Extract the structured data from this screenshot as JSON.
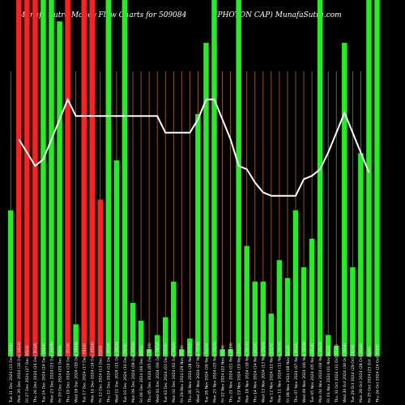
{
  "header": {
    "left": "Munafa Sutra  Money Flow  Charts for 509084",
    "right": "(PHOTON   CAP) MunafaSutra.com"
  },
  "colors": {
    "background": "#000000",
    "up": "#22ee22",
    "down": "#ff2020",
    "guide": "#b5651d",
    "line": "#ffffff"
  },
  "chart_data": {
    "type": "bar",
    "title": "Munafa Sutra  Money Flow  Charts for 509084",
    "subtitle": "(PHOTON   CAP) MunafaSutra.com",
    "ylim": [
      0,
      100
    ],
    "categories": [
      "Tue 31 Dec 2024 (31 Dec 2024)",
      "Mon 30 Dec 2024 (30 Dec 2024)",
      "Fri 27 Dec 2024 (27 Dec 2024)",
      "Thu 26 Dec 2024 (26 Dec 2024)",
      "Tue 24 Dec 2024 (24 Dec 2024)",
      "Mon 23 Dec 2024 (23 Dec 2024)",
      "Fri 20 Dec 2024 (20 Dec 2024)",
      "Thu 19 Dec 2024 (19 Dec 2024)",
      "Wed 18 Dec 2024 (18 Dec 2024)",
      "Tue 17 Dec 2024 (17 Dec 2024)",
      "Mon 16 Dec 2024 (16 Dec 2024)",
      "Fri 13 Dec 2024 (13 Dec 2024)",
      "Thu 12 Dec 2024 (12 Dec 2024)",
      "Wed 11 Dec 2024 (11 Dec 2024)",
      "Tue 10 Dec 2024 (10 Dec 2024)",
      "Mon 09 Dec 2024 (09 Dec 2024)",
      "Fri 06 Dec 2024 (06 Dec 2024)",
      "Thu 05 Dec 2024 (05 Dec 2024)",
      "Wed 04 Dec 2024 (04 Dec 2024)",
      "Tue 03 Dec 2024 (03 Dec 2024)",
      "Mon 02 Dec 2024 (02 Dec 2024)",
      "Fri 29 Nov 2024 (29 Nov 2024)",
      "Thu 28 Nov 2024 (28 Nov 2024)",
      "Wed 27 Nov 2024 (27 Nov 2024)",
      "Tue 26 Nov 2024 (26 Nov 2024)",
      "Mon 25 Nov 2024 (25 Nov 2024)",
      "Fri 22 Nov 2024 (22 Nov 2024)",
      "Thu 21 Nov 2024 (21 Nov 2024)",
      "Tue 19 Nov 2024 (19 Nov 2024)",
      "Mon 18 Nov 2024 (18 Nov 2024)",
      "Thu 14 Nov 2024 (14 Nov 2024)",
      "Wed 13 Nov 2024 (13 Nov 2024)",
      "Tue 12 Nov 2024 (12 Nov 2024)",
      "Mon 11 Nov 2024 (11 Nov 2024)",
      "Fri 08 Nov 2024 (08 Nov 2024)",
      "Thu 07 Nov 2024 (07 Nov 2024)",
      "Wed 06 Nov 2024 (06 Nov 2024)",
      "Tue 05 Nov 2024 (05 Nov 2024)",
      "Mon 04 Nov 2024 (04 Nov 2024)",
      "Fri 01 Nov 2024 (01 Nov 2024)",
      "Thu 31 Oct 2024 (31 Oct 2024)",
      "Wed 30 Oct 2024 (30 Oct 2024)",
      "Tue 29 Oct 2024 (29 Oct 2024)",
      "Mon 28 Oct 2024 (28 Oct 2024)",
      "Fri 25 Oct 2024 (25 Oct 2024)",
      "Thu 24 Oct 2024 (24 Oct 2024)"
    ],
    "series": [
      {
        "name": "money_flow_bar",
        "values": [
          41,
          100,
          100,
          100,
          100,
          100,
          94,
          100,
          9,
          100,
          100,
          44,
          100,
          55,
          100,
          15,
          10,
          2,
          6,
          11,
          21,
          2,
          5,
          68,
          88,
          100,
          2,
          2,
          100,
          31,
          21,
          21,
          12,
          27,
          22,
          41,
          25,
          33,
          100,
          6,
          3,
          88,
          25,
          57,
          100,
          100
        ],
        "colors": [
          "g",
          "r",
          "r",
          "r",
          "g",
          "g",
          "g",
          "r",
          "g",
          "r",
          "r",
          "r",
          "g",
          "g",
          "g",
          "g",
          "g",
          "g",
          "g",
          "g",
          "g",
          "g",
          "g",
          "g",
          "g",
          "g",
          "g",
          "g",
          "g",
          "g",
          "g",
          "g",
          "g",
          "g",
          "g",
          "g",
          "g",
          "g",
          "g",
          "g",
          "g",
          "g",
          "g",
          "g",
          "g",
          "g"
        ]
      },
      {
        "name": "trend_line",
        "values": [
          null,
          80,
          76,
          72,
          74,
          80,
          86,
          92,
          87,
          87,
          87,
          87,
          87,
          87,
          87,
          87,
          87,
          87,
          87,
          82,
          82,
          82,
          82,
          86,
          92,
          92,
          86,
          80,
          72,
          71,
          67,
          64,
          63,
          63,
          63,
          63,
          68,
          69,
          71,
          76,
          82,
          88,
          82,
          76,
          70,
          null
        ]
      }
    ]
  }
}
